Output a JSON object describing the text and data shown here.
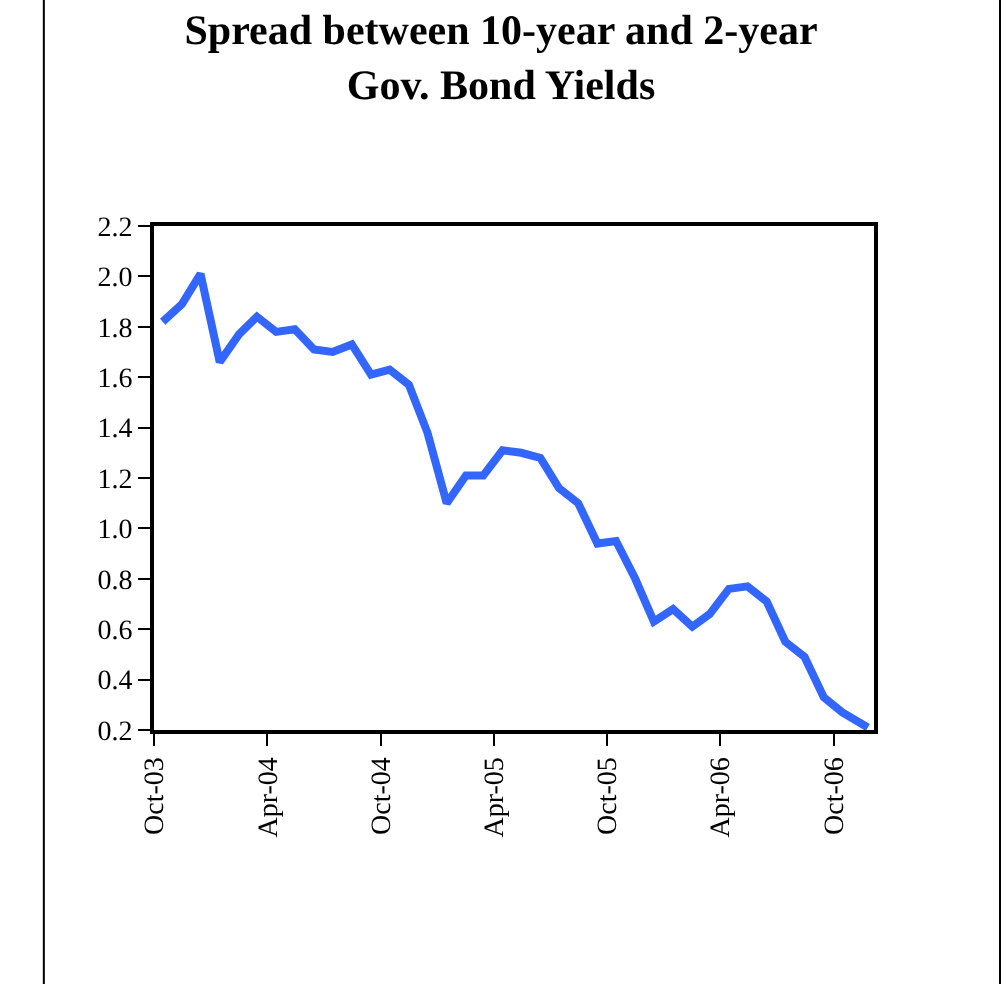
{
  "chart_data": {
    "type": "line",
    "title": "Spread between 10-year and 2-year\nGov. Bond Yields",
    "x": [
      "2003-10-15",
      "2003-11-15",
      "2003-12-15",
      "2004-01-15",
      "2004-02-15",
      "2004-03-15",
      "2004-04-15",
      "2004-05-15",
      "2004-06-15",
      "2004-07-15",
      "2004-08-15",
      "2004-09-15",
      "2004-10-15",
      "2004-11-15",
      "2004-12-15",
      "2005-01-15",
      "2005-02-15",
      "2005-03-15",
      "2005-04-15",
      "2005-05-15",
      "2005-06-15",
      "2005-07-15",
      "2005-08-15",
      "2005-09-15",
      "2005-10-15",
      "2005-11-15",
      "2005-12-15",
      "2006-01-15",
      "2006-02-15",
      "2006-03-15",
      "2006-04-15",
      "2006-05-15",
      "2006-06-15",
      "2006-07-15",
      "2006-08-15",
      "2006-09-15",
      "2006-10-15",
      "2006-11-25"
    ],
    "series": [
      {
        "color": "#3366ff",
        "values": [
          1.82,
          1.89,
          2.01,
          1.66,
          1.77,
          1.84,
          1.78,
          1.79,
          1.71,
          1.7,
          1.73,
          1.61,
          1.63,
          1.57,
          1.38,
          1.1,
          1.21,
          1.21,
          1.31,
          1.3,
          1.28,
          1.16,
          1.1,
          0.94,
          0.95,
          0.8,
          0.63,
          0.68,
          0.61,
          0.66,
          0.76,
          0.77,
          0.71,
          0.55,
          0.49,
          0.33,
          0.27,
          0.21
        ]
      }
    ],
    "xlim": [
      "2003-10-01",
      "2006-12-05"
    ],
    "xticks": [
      {
        "value": "2003-10-01",
        "label": "Oct-03"
      },
      {
        "value": "2004-04-01",
        "label": "Apr-04"
      },
      {
        "value": "2004-10-01",
        "label": "Oct-04"
      },
      {
        "value": "2005-04-01",
        "label": "Apr-05"
      },
      {
        "value": "2005-10-01",
        "label": "Oct-05"
      },
      {
        "value": "2006-04-01",
        "label": "Apr-06"
      },
      {
        "value": "2006-10-01",
        "label": "Oct-06"
      }
    ],
    "ylim": [
      0.2,
      2.2
    ],
    "yticks": [
      {
        "value": 0.2,
        "label": "0.2"
      },
      {
        "value": 0.4,
        "label": "0.4"
      },
      {
        "value": 0.6,
        "label": "0.6"
      },
      {
        "value": 0.8,
        "label": "0.8"
      },
      {
        "value": 1.0,
        "label": "1.0"
      },
      {
        "value": 1.2,
        "label": "1.2"
      },
      {
        "value": 1.4,
        "label": "1.4"
      },
      {
        "value": 1.6,
        "label": "1.6"
      },
      {
        "value": 1.8,
        "label": "1.8"
      },
      {
        "value": 2.0,
        "label": "2.0"
      },
      {
        "value": 2.2,
        "label": "2.2"
      }
    ],
    "marker": "none",
    "line_style": "solid"
  }
}
